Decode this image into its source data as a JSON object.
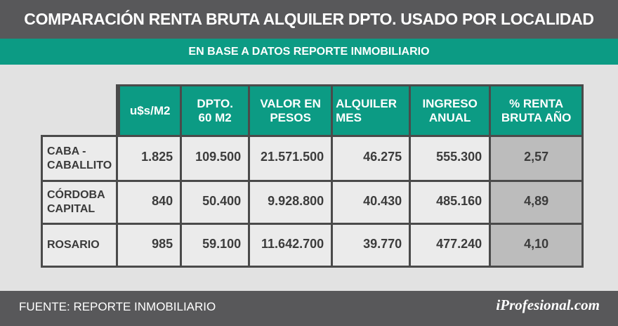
{
  "header": {
    "title": "COMPARACIÓN RENTA BRUTA ALQUILER DPTO. USADO POR LOCALIDAD",
    "subtitle": "EN BASE A DATOS REPORTE INMOBILIARIO"
  },
  "table": {
    "columns": [
      "u$s/M2",
      "DPTO. 60 M2",
      "VALOR EN PESOS",
      "ALQUILER MES",
      "INGRESO ANUAL",
      "% RENTA BRUTA AÑO"
    ],
    "rows": [
      {
        "label": "CABA - CABALLITO",
        "values": [
          "1.825",
          "109.500",
          "21.571.500",
          "46.275",
          "555.300",
          "2,57"
        ]
      },
      {
        "label": "CÓRDOBA CAPITAL",
        "values": [
          "840",
          "50.400",
          "9.928.800",
          "40.430",
          "485.160",
          "4,89"
        ]
      },
      {
        "label": "ROSARIO",
        "values": [
          "985",
          "59.100",
          "11.642.700",
          "39.770",
          "477.240",
          "4,10"
        ]
      }
    ]
  },
  "footer": {
    "source": "FUENTE: REPORTE INMOBILIARIO",
    "logo": "iProfesional.com"
  },
  "colors": {
    "dark_gray": "#58585a",
    "teal": "#0c9b84",
    "cell_bg": "#ebebeb",
    "renta_bg": "#bcbcbc"
  }
}
